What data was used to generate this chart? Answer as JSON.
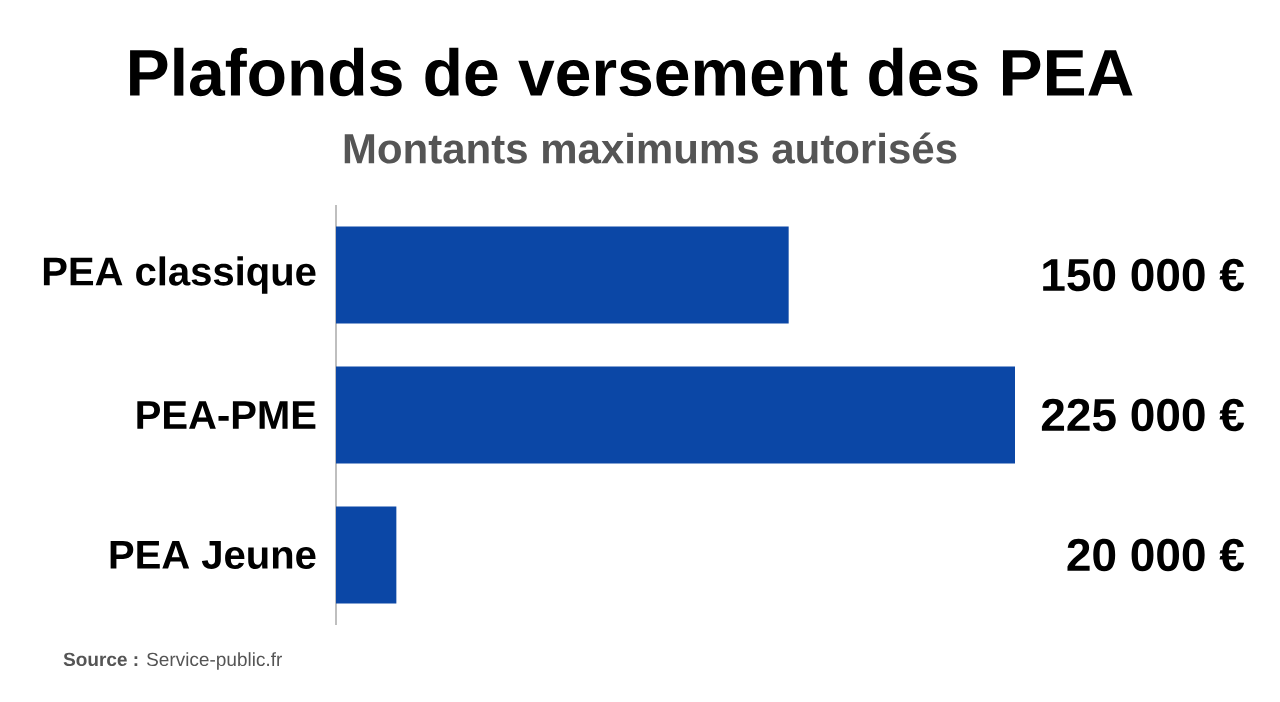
{
  "chart_data": {
    "type": "bar",
    "orientation": "horizontal",
    "title": "Plafonds de versement des PEA",
    "subtitle": "Montants maximums autorisés",
    "categories": [
      "PEA classique",
      "PEA-PME",
      "PEA Jeune"
    ],
    "values": [
      150000,
      225000,
      20000
    ],
    "value_labels": [
      "150 000 €",
      "225 000 €",
      "20 000 €"
    ],
    "color": "#0b47a6",
    "xlim": [
      0,
      225000
    ],
    "tick_labels": "y",
    "annotations": [
      "**Source :** Service-public.fr"
    ]
  }
}
